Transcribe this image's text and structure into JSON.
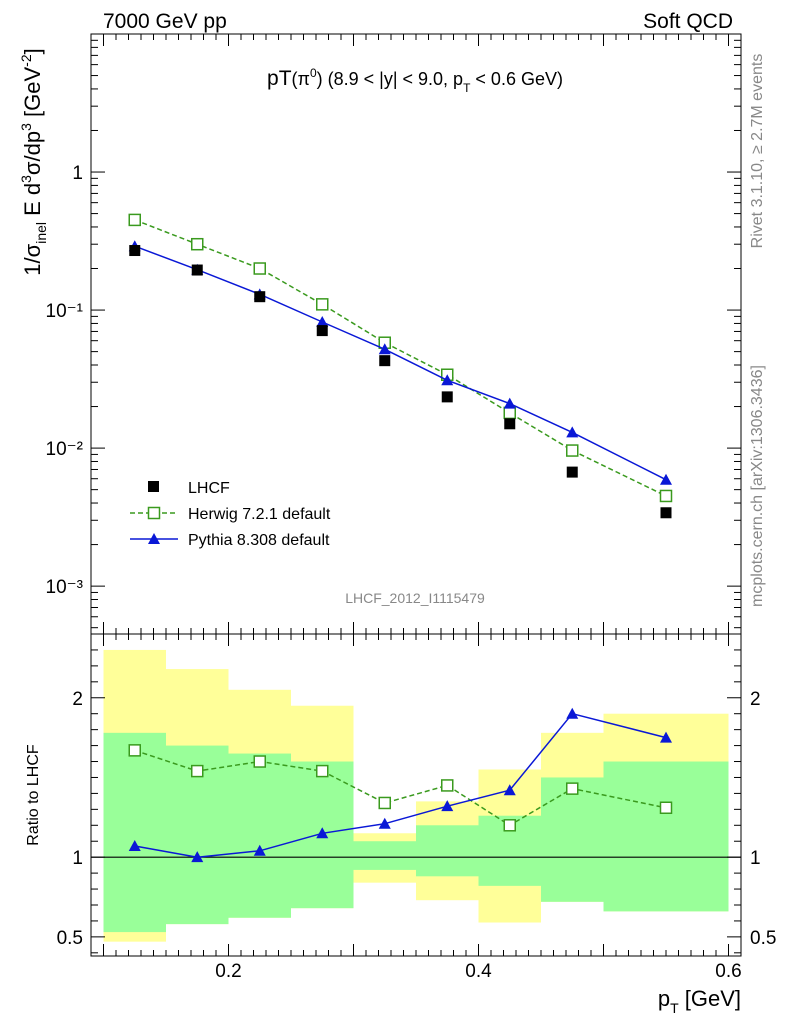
{
  "header": {
    "left": "7000 GeV pp",
    "right": "Soft QCD"
  },
  "side_labels": {
    "rivet": "Rivet 3.1.10, ≥ 2.7M events",
    "mcplots": "mcplots.cern.ch [arXiv:1306.3436]"
  },
  "watermark": "LHCF_2012_I1115479",
  "colors": {
    "data": "#000000",
    "herwig": "#3a9a1e",
    "pythia": "#0a18d6",
    "band_outer": "#ffff99",
    "band_inner": "#99ff99"
  },
  "chart_data": [
    {
      "type": "scatter",
      "title": "pT(π⁰) (8.9 < |y| < 9.0, pT < 0.6 GeV)",
      "xlabel": "pT [GeV]",
      "ylabel": "1/σinel E d³σ/dp³ [GeV⁻²]",
      "yscale": "log",
      "xlim": [
        0.09,
        0.61
      ],
      "ylim": [
        0.00045,
        10
      ],
      "ytick_labels": [
        "1",
        "10⁻¹",
        "10⁻²",
        "10⁻³"
      ],
      "ytick_values": [
        1,
        0.1,
        0.01,
        0.001
      ],
      "legend_position": "bottom-left",
      "series": [
        {
          "name": "LHCF",
          "style": "filled-square",
          "x": [
            0.125,
            0.175,
            0.225,
            0.275,
            0.325,
            0.375,
            0.425,
            0.475,
            0.55
          ],
          "values": [
            0.27,
            0.195,
            0.125,
            0.071,
            0.043,
            0.0235,
            0.015,
            0.0067,
            0.0034
          ]
        },
        {
          "name": "Herwig 7.2.1 default",
          "style": "open-square-dashed",
          "x": [
            0.125,
            0.175,
            0.225,
            0.275,
            0.325,
            0.375,
            0.425,
            0.475,
            0.55
          ],
          "values": [
            0.45,
            0.3,
            0.2,
            0.11,
            0.058,
            0.034,
            0.018,
            0.0096,
            0.0045
          ]
        },
        {
          "name": "Pythia 8.308 default",
          "style": "filled-triangle-line",
          "x": [
            0.125,
            0.175,
            0.225,
            0.275,
            0.325,
            0.375,
            0.425,
            0.475,
            0.55
          ],
          "values": [
            0.29,
            0.196,
            0.13,
            0.082,
            0.052,
            0.031,
            0.021,
            0.013,
            0.0059
          ]
        }
      ]
    },
    {
      "type": "line",
      "ylabel": "Ratio to LHCF",
      "xlabel": "pT [GeV]",
      "xlim": [
        0.09,
        0.61
      ],
      "ylim": [
        0.38,
        2.4
      ],
      "xtick_labels": [
        "0.2",
        "0.4",
        "0.6"
      ],
      "xtick_values": [
        0.2,
        0.4,
        0.6
      ],
      "ytick_labels": [
        "0.5",
        "1",
        "2"
      ],
      "ytick_values": [
        0.5,
        1,
        2
      ],
      "bands": [
        {
          "x0": 0.1,
          "x1": 0.15,
          "outer": [
            0.47,
            2.3
          ],
          "inner": [
            0.53,
            1.78
          ]
        },
        {
          "x0": 0.15,
          "x1": 0.2,
          "outer": [
            0.58,
            2.18
          ],
          "inner": [
            0.58,
            1.7
          ]
        },
        {
          "x0": 0.2,
          "x1": 0.25,
          "outer": [
            0.62,
            2.05
          ],
          "inner": [
            0.62,
            1.65
          ]
        },
        {
          "x0": 0.25,
          "x1": 0.3,
          "outer": [
            0.68,
            1.95
          ],
          "inner": [
            0.68,
            1.6
          ]
        },
        {
          "x0": 0.3,
          "x1": 0.35,
          "outer": [
            0.84,
            1.15
          ],
          "inner": [
            0.92,
            1.1
          ]
        },
        {
          "x0": 0.35,
          "x1": 0.4,
          "outer": [
            0.73,
            1.35
          ],
          "inner": [
            0.88,
            1.2
          ]
        },
        {
          "x0": 0.4,
          "x1": 0.45,
          "outer": [
            0.59,
            1.55
          ],
          "inner": [
            0.82,
            1.26
          ]
        },
        {
          "x0": 0.45,
          "x1": 0.5,
          "outer": [
            0.72,
            1.78
          ],
          "inner": [
            0.72,
            1.5
          ]
        },
        {
          "x0": 0.5,
          "x1": 0.6,
          "outer": [
            0.66,
            1.9
          ],
          "inner": [
            0.66,
            1.6
          ]
        }
      ],
      "series": [
        {
          "name": "Herwig 7.2.1 default",
          "style": "open-square-dashed",
          "x": [
            0.125,
            0.175,
            0.225,
            0.275,
            0.325,
            0.375,
            0.425,
            0.475,
            0.55
          ],
          "values": [
            1.67,
            1.54,
            1.6,
            1.54,
            1.34,
            1.45,
            1.2,
            1.43,
            1.31
          ]
        },
        {
          "name": "Pythia 8.308 default",
          "style": "filled-triangle-line",
          "x": [
            0.125,
            0.175,
            0.225,
            0.275,
            0.325,
            0.375,
            0.425,
            0.475,
            0.55
          ],
          "values": [
            1.07,
            1.0,
            1.04,
            1.15,
            1.21,
            1.32,
            1.42,
            1.9,
            1.75
          ]
        }
      ]
    }
  ]
}
